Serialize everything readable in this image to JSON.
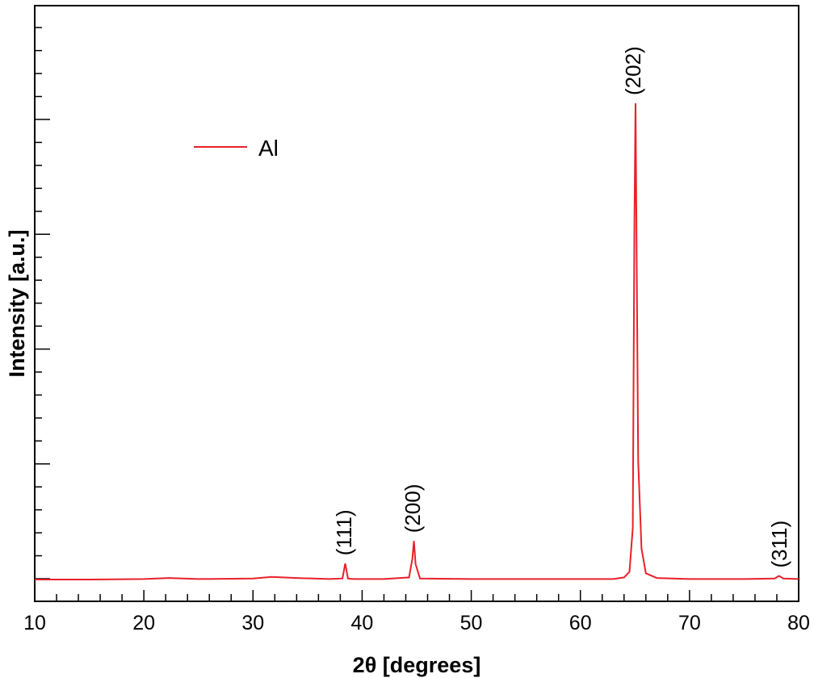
{
  "chart_data": {
    "type": "line",
    "title": "",
    "xlabel": "2θ [degrees]",
    "ylabel": "Intensity [a.u.]",
    "xlim": [
      10,
      80
    ],
    "ylim": [
      0,
      1000
    ],
    "x_ticks": [
      10,
      20,
      30,
      40,
      50,
      60,
      70,
      80
    ],
    "x_tick_labels": [
      "10",
      "20",
      "30",
      "40",
      "50",
      "60",
      "70",
      "80"
    ],
    "grid": false,
    "legend": {
      "position": "top-left",
      "entries": [
        "Al"
      ]
    },
    "series": [
      {
        "name": "Al",
        "color": "#e8202a",
        "x": [
          10,
          15,
          20,
          22.3,
          25,
          30,
          31.7,
          34,
          37,
          38.2,
          38.45,
          38.7,
          39.2,
          42,
          44.3,
          44.6,
          44.75,
          44.9,
          45.3,
          50,
          60,
          63,
          64,
          64.5,
          64.8,
          64.95,
          65.05,
          65.15,
          65.3,
          65.6,
          66,
          67,
          70,
          75,
          77.8,
          78.2,
          78.6,
          80
        ],
        "y": [
          30,
          30,
          31,
          33,
          31,
          32,
          35,
          33,
          31,
          32,
          61,
          32,
          31,
          31,
          34,
          70,
          105,
          60,
          32,
          31,
          31,
          31,
          34,
          45,
          130,
          720,
          955,
          680,
          260,
          90,
          42,
          33,
          31,
          31,
          32,
          37,
          32,
          31
        ]
      }
    ],
    "annotations": [
      {
        "text": "(111)",
        "x": 38.4
      },
      {
        "text": "(200)",
        "x": 44.7
      },
      {
        "text": "(202)",
        "x": 64.9
      },
      {
        "text": "(311)",
        "x": 78.3
      }
    ]
  }
}
